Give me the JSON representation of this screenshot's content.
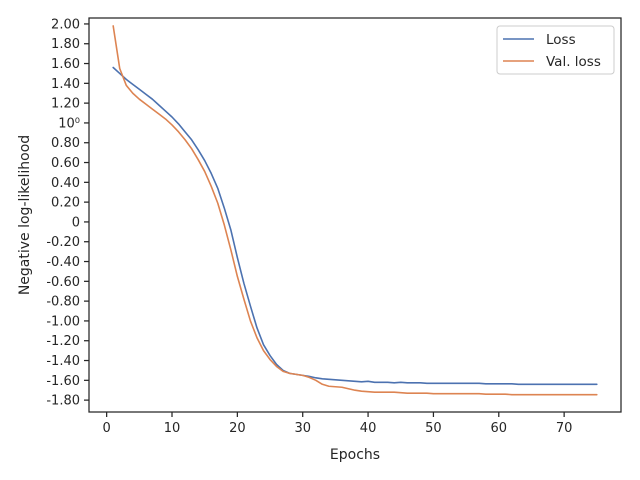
{
  "chart_data": {
    "type": "line",
    "xlabel": "Epochs",
    "ylabel": "Negative log-likelihood",
    "xlim": [
      -2.7,
      78.7
    ],
    "ylim": [
      -1.92,
      2.06
    ],
    "xticks": [
      {
        "value": 0,
        "label": "0"
      },
      {
        "value": 10,
        "label": "10"
      },
      {
        "value": 20,
        "label": "20"
      },
      {
        "value": 30,
        "label": "30"
      },
      {
        "value": 40,
        "label": "40"
      },
      {
        "value": 50,
        "label": "50"
      },
      {
        "value": 60,
        "label": "60"
      },
      {
        "value": 70,
        "label": "70"
      }
    ],
    "yticks": [
      {
        "value": 2.0,
        "label": "2.00"
      },
      {
        "value": 1.8,
        "label": "1.80"
      },
      {
        "value": 1.6,
        "label": "1.60"
      },
      {
        "value": 1.4,
        "label": "1.40"
      },
      {
        "value": 1.2,
        "label": "1.20"
      },
      {
        "value": 1.0,
        "label": "10⁰"
      },
      {
        "value": 0.8,
        "label": "0.80"
      },
      {
        "value": 0.6,
        "label": "0.60"
      },
      {
        "value": 0.4,
        "label": "0.40"
      },
      {
        "value": 0.2,
        "label": "0.20"
      },
      {
        "value": 0.0,
        "label": "0"
      },
      {
        "value": -0.2,
        "label": "-0.20"
      },
      {
        "value": -0.4,
        "label": "-0.40"
      },
      {
        "value": -0.6,
        "label": "-0.60"
      },
      {
        "value": -0.8,
        "label": "-0.80"
      },
      {
        "value": -1.0,
        "label": "-1.00"
      },
      {
        "value": -1.2,
        "label": "-1.20"
      },
      {
        "value": -1.4,
        "label": "-1.40"
      },
      {
        "value": -1.6,
        "label": "-1.60"
      },
      {
        "value": -1.8,
        "label": "-1.80"
      }
    ],
    "grid": false,
    "legend": "top-right",
    "x": [
      1,
      2,
      3,
      4,
      5,
      6,
      7,
      8,
      9,
      10,
      11,
      12,
      13,
      14,
      15,
      16,
      17,
      18,
      19,
      20,
      21,
      22,
      23,
      24,
      25,
      26,
      27,
      28,
      29,
      30,
      31,
      32,
      33,
      34,
      35,
      36,
      37,
      38,
      39,
      40,
      41,
      42,
      43,
      44,
      45,
      46,
      47,
      48,
      49,
      50,
      51,
      52,
      53,
      54,
      55,
      56,
      57,
      58,
      59,
      60,
      61,
      62,
      63,
      64,
      65,
      66,
      67,
      68,
      69,
      70,
      71,
      72,
      73,
      74,
      75
    ],
    "series": [
      {
        "name": "Loss",
        "color": "#4c72b0",
        "values": [
          1.56,
          1.5,
          1.44,
          1.39,
          1.34,
          1.29,
          1.24,
          1.18,
          1.12,
          1.06,
          0.99,
          0.91,
          0.83,
          0.73,
          0.62,
          0.49,
          0.34,
          0.14,
          -0.08,
          -0.36,
          -0.62,
          -0.85,
          -1.07,
          -1.24,
          -1.35,
          -1.44,
          -1.5,
          -1.53,
          -1.54,
          -1.55,
          -1.56,
          -1.575,
          -1.585,
          -1.59,
          -1.595,
          -1.6,
          -1.605,
          -1.61,
          -1.615,
          -1.61,
          -1.62,
          -1.62,
          -1.62,
          -1.625,
          -1.62,
          -1.625,
          -1.625,
          -1.625,
          -1.63,
          -1.63,
          -1.63,
          -1.63,
          -1.63,
          -1.63,
          -1.63,
          -1.63,
          -1.63,
          -1.635,
          -1.635,
          -1.635,
          -1.635,
          -1.635,
          -1.64,
          -1.64,
          -1.64,
          -1.64,
          -1.64,
          -1.64,
          -1.64,
          -1.64,
          -1.64,
          -1.64,
          -1.64,
          -1.64,
          -1.64
        ]
      },
      {
        "name": "Val. loss",
        "color": "#dd8452",
        "values": [
          1.98,
          1.55,
          1.38,
          1.3,
          1.24,
          1.19,
          1.14,
          1.09,
          1.04,
          0.98,
          0.91,
          0.83,
          0.74,
          0.63,
          0.51,
          0.36,
          0.19,
          -0.03,
          -0.28,
          -0.55,
          -0.78,
          -1.0,
          -1.17,
          -1.3,
          -1.39,
          -1.46,
          -1.51,
          -1.53,
          -1.54,
          -1.55,
          -1.57,
          -1.6,
          -1.64,
          -1.66,
          -1.665,
          -1.67,
          -1.685,
          -1.7,
          -1.71,
          -1.715,
          -1.72,
          -1.72,
          -1.72,
          -1.72,
          -1.725,
          -1.73,
          -1.73,
          -1.73,
          -1.73,
          -1.735,
          -1.735,
          -1.735,
          -1.735,
          -1.735,
          -1.735,
          -1.735,
          -1.735,
          -1.74,
          -1.74,
          -1.74,
          -1.74,
          -1.745,
          -1.745,
          -1.745,
          -1.745,
          -1.745,
          -1.745,
          -1.745,
          -1.745,
          -1.745,
          -1.745,
          -1.745,
          -1.745,
          -1.745,
          -1.745
        ]
      }
    ]
  }
}
